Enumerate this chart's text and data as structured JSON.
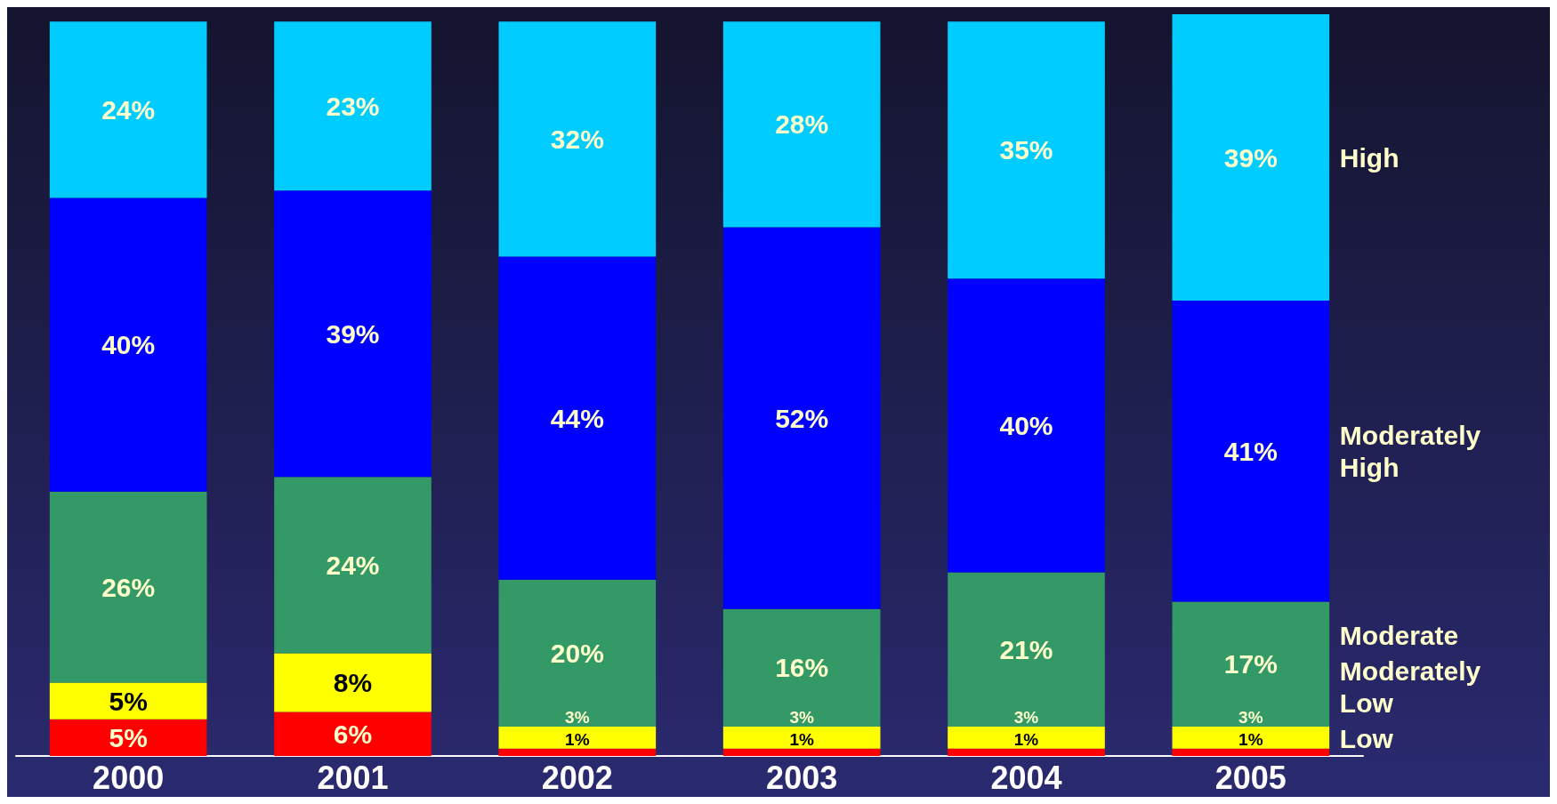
{
  "chart_data": {
    "type": "bar",
    "stacked": true,
    "categories": [
      "2000",
      "2001",
      "2002",
      "2003",
      "2004",
      "2005"
    ],
    "series": [
      {
        "name": "Low",
        "color": "#ff0000",
        "values": [
          5,
          6,
          1,
          1,
          1,
          1
        ],
        "value_labels": [
          "5%",
          "6%",
          "1%",
          "1%",
          "1%",
          "1%"
        ]
      },
      {
        "name": "Moderately Low",
        "color": "#ffff00",
        "values": [
          5,
          8,
          3,
          3,
          3,
          3
        ],
        "value_labels": [
          "5%",
          "8%",
          "3%",
          "3%",
          "3%",
          "3%"
        ]
      },
      {
        "name": "Moderate",
        "color": "#339966",
        "values": [
          26,
          24,
          20,
          16,
          21,
          17
        ],
        "value_labels": [
          "26%",
          "24%",
          "20%",
          "16%",
          "21%",
          "17%"
        ]
      },
      {
        "name": "Moderately High",
        "color": "#0000ff",
        "values": [
          40,
          39,
          44,
          52,
          40,
          41
        ],
        "value_labels": [
          "40%",
          "39%",
          "44%",
          "52%",
          "40%",
          "41%"
        ]
      },
      {
        "name": "High",
        "color": "#00ccff",
        "values": [
          24,
          23,
          32,
          28,
          35,
          39
        ],
        "value_labels": [
          "24%",
          "23%",
          "32%",
          "28%",
          "35%",
          "39%"
        ]
      }
    ],
    "tick_labels": "x",
    "grid": false,
    "legend": false
  }
}
